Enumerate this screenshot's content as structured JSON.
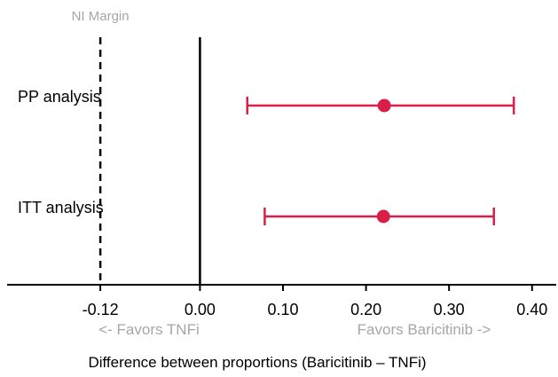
{
  "chart_data": {
    "type": "forest",
    "x_values_label": "Difference between proportions (Baricitinib – TNFi)",
    "xlabel": "Difference between proportions (Baricitinib – TNFi)",
    "xlim": [
      -0.2323,
      0.4291
    ],
    "ticks": [
      {
        "value": -0.12,
        "label": "-0.12"
      },
      {
        "value": 0.0,
        "label": "0.00"
      },
      {
        "value": 0.1,
        "label": "0.10"
      },
      {
        "value": 0.2,
        "label": "0.20"
      },
      {
        "value": 0.3,
        "label": "0.30"
      },
      {
        "value": 0.4,
        "label": "0.40"
      }
    ],
    "rows": [
      {
        "label": "PP analysis",
        "estimate": 0.222,
        "lower": 0.057,
        "upper": 0.378
      },
      {
        "label": "ITT analysis",
        "estimate": 0.221,
        "lower": 0.078,
        "upper": 0.354
      }
    ],
    "reference_lines": [
      {
        "value": 0.0,
        "style": "solid"
      },
      {
        "value": -0.12,
        "style": "dashed",
        "label": "NI Margin"
      }
    ],
    "direction_labels": {
      "left": "<- Favors TNFi",
      "right": "Favors Baricitinib ->"
    },
    "grid": false,
    "legend": "none",
    "colors": {
      "estimate": "#d81f47",
      "axis": "#000000",
      "muted_text": "#a6a6a6"
    }
  }
}
